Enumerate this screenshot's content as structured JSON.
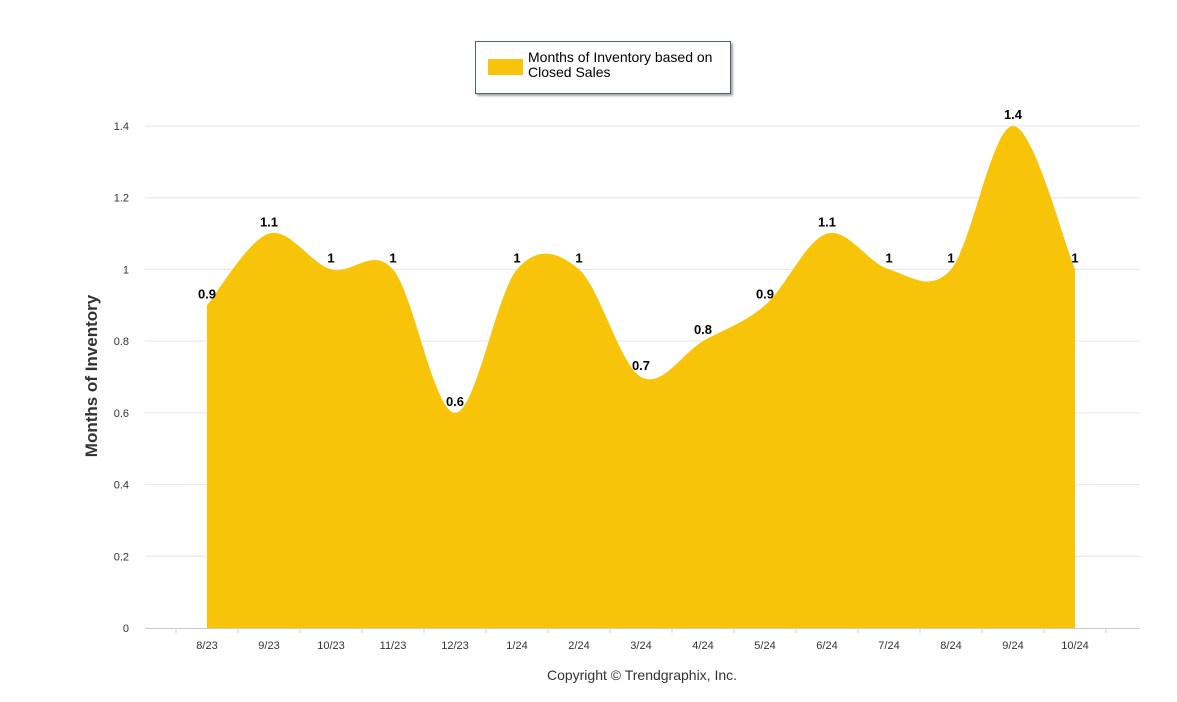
{
  "chart_data": {
    "type": "area",
    "categories": [
      "8/23",
      "9/23",
      "10/23",
      "11/23",
      "12/23",
      "1/24",
      "2/24",
      "3/24",
      "4/24",
      "5/24",
      "6/24",
      "7/24",
      "8/24",
      "9/24",
      "10/24"
    ],
    "series": [
      {
        "name": "Months of Inventory based on Closed Sales",
        "values": [
          0.9,
          1.1,
          1,
          1,
          0.6,
          1,
          1,
          0.7,
          0.8,
          0.9,
          1.1,
          1,
          1,
          1.4,
          1
        ],
        "color": "#f7c40a"
      }
    ],
    "data_labels": [
      "0.9",
      "1.1",
      "1",
      "1",
      "0.6",
      "1",
      "1",
      "0.7",
      "0.8",
      "0.9",
      "1.1",
      "1",
      "1",
      "1.4",
      "1"
    ],
    "ylabel": "Months of Inventory",
    "xlabel": "",
    "ylim": [
      0,
      1.4
    ],
    "yticks": [
      "0",
      "0.2",
      "0.4",
      "0.6",
      "0.8",
      "1",
      "1.2",
      "1.4"
    ],
    "grid": true,
    "legend_position": "top-center",
    "smooth": true
  },
  "legend": {
    "label": "Months of Inventory based on Closed Sales"
  },
  "footer": {
    "copyright": "Copyright © Trendgraphix, Inc."
  },
  "colors": {
    "area": "#f7c40a",
    "grid": "#e6e6e6",
    "axis": "#cccccc"
  }
}
